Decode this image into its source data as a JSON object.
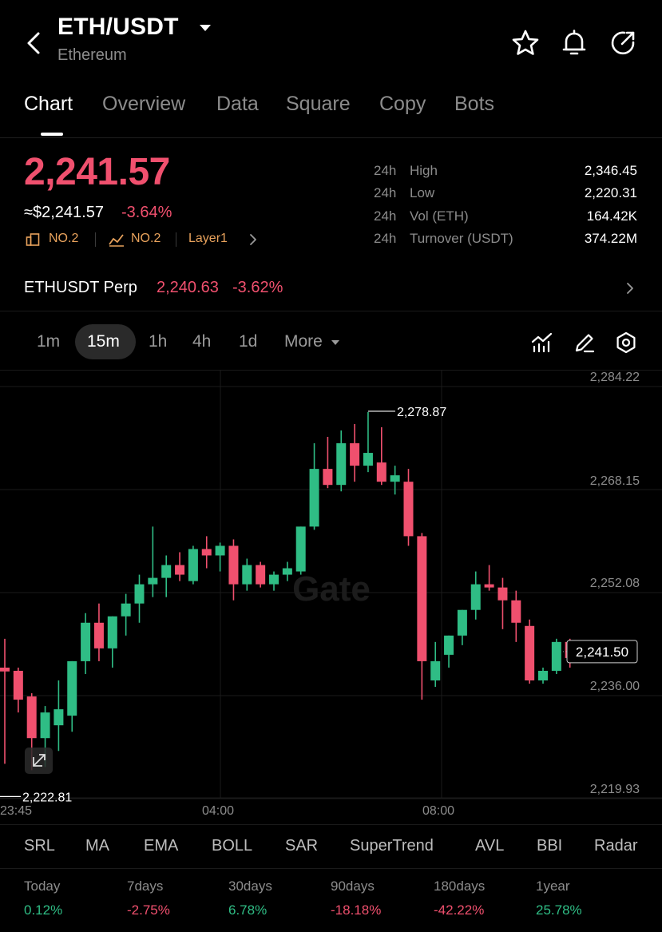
{
  "header": {
    "pair": "ETH/USDT",
    "name": "Ethereum",
    "icons": [
      "back-icon",
      "caret-down-icon",
      "star-icon",
      "bell-icon",
      "share-icon"
    ]
  },
  "tabs": [
    "Chart",
    "Overview",
    "Data",
    "Square",
    "Copy",
    "Bots"
  ],
  "active_tab": "Chart",
  "price": {
    "last": "2,241.57",
    "usd": "≈$2,241.57",
    "change": "-3.64%",
    "tags": [
      "NO.2",
      "NO.2",
      "Layer1"
    ]
  },
  "stats": [
    {
      "period": "24h",
      "label": "High",
      "value": "2,346.45"
    },
    {
      "period": "24h",
      "label": "Low",
      "value": "2,220.31"
    },
    {
      "period": "24h",
      "label": "Vol (ETH)",
      "value": "164.42K"
    },
    {
      "period": "24h",
      "label": "Turnover (USDT)",
      "value": "374.22M"
    }
  ],
  "perp": {
    "label": "ETHUSDT Perp",
    "price": "2,240.63",
    "change": "-3.62%"
  },
  "intervals": [
    "1m",
    "15m",
    "1h",
    "4h",
    "1d",
    "More"
  ],
  "active_interval": "15m",
  "colors": {
    "up": "#2fbd85",
    "down": "#f0506e",
    "accent_tag": "#e8a25c"
  },
  "chart_data": {
    "type": "candlestick",
    "watermark": "Gate",
    "y_ticks": [
      "2,284.22",
      "2,268.15",
      "2,252.08",
      "2,236.00",
      "2,219.93"
    ],
    "x_ticks": [
      "23:45",
      "04:00",
      "08:00"
    ],
    "high_marker": "2,278.87",
    "low_marker": "2,222.81",
    "current_price": "2,241.50",
    "ylim": [
      2219.93,
      2284.22
    ],
    "candles": [
      {
        "o": 2239.0,
        "h": 2243.5,
        "l": 2224.0,
        "c": 2238.4
      },
      {
        "o": 2238.5,
        "h": 2239.0,
        "l": 2232.0,
        "c": 2234.0
      },
      {
        "o": 2234.5,
        "h": 2235.0,
        "l": 2223.0,
        "c": 2228.0
      },
      {
        "o": 2228.0,
        "h": 2233.0,
        "l": 2223.5,
        "c": 2232.0
      },
      {
        "o": 2230.0,
        "h": 2237.0,
        "l": 2226.0,
        "c": 2232.5
      },
      {
        "o": 2231.5,
        "h": 2240.0,
        "l": 2229.0,
        "c": 2240.0
      },
      {
        "o": 2240.0,
        "h": 2247.5,
        "l": 2238.0,
        "c": 2246.0
      },
      {
        "o": 2246.0,
        "h": 2249.0,
        "l": 2240.0,
        "c": 2242.0
      },
      {
        "o": 2242.0,
        "h": 2247.0,
        "l": 2239.0,
        "c": 2247.0
      },
      {
        "o": 2247.0,
        "h": 2250.5,
        "l": 2244.0,
        "c": 2249.0
      },
      {
        "o": 2249.0,
        "h": 2253.5,
        "l": 2246.0,
        "c": 2252.0
      },
      {
        "o": 2252.0,
        "h": 2261.0,
        "l": 2250.0,
        "c": 2253.0
      },
      {
        "o": 2253.0,
        "h": 2256.5,
        "l": 2250.0,
        "c": 2255.0
      },
      {
        "o": 2255.0,
        "h": 2257.0,
        "l": 2252.5,
        "c": 2253.5
      },
      {
        "o": 2252.5,
        "h": 2258.0,
        "l": 2252.0,
        "c": 2257.5
      },
      {
        "o": 2257.5,
        "h": 2259.5,
        "l": 2254.5,
        "c": 2256.5
      },
      {
        "o": 2256.5,
        "h": 2258.5,
        "l": 2254.0,
        "c": 2258.0
      },
      {
        "o": 2258.0,
        "h": 2259.0,
        "l": 2249.5,
        "c": 2252.0
      },
      {
        "o": 2252.0,
        "h": 2256.0,
        "l": 2251.0,
        "c": 2255.0
      },
      {
        "o": 2255.0,
        "h": 2255.5,
        "l": 2251.5,
        "c": 2252.0
      },
      {
        "o": 2252.0,
        "h": 2254.0,
        "l": 2251.0,
        "c": 2253.5
      },
      {
        "o": 2253.5,
        "h": 2255.5,
        "l": 2252.5,
        "c": 2254.5
      },
      {
        "o": 2254.0,
        "h": 2261.0,
        "l": 2253.5,
        "c": 2261.0
      },
      {
        "o": 2261.0,
        "h": 2274.0,
        "l": 2260.5,
        "c": 2270.0
      },
      {
        "o": 2270.0,
        "h": 2275.0,
        "l": 2267.0,
        "c": 2267.5
      },
      {
        "o": 2267.5,
        "h": 2276.0,
        "l": 2266.5,
        "c": 2274.0
      },
      {
        "o": 2274.0,
        "h": 2277.0,
        "l": 2268.0,
        "c": 2270.5
      },
      {
        "o": 2270.5,
        "h": 2278.87,
        "l": 2269.5,
        "c": 2272.5
      },
      {
        "o": 2271.0,
        "h": 2276.5,
        "l": 2267.5,
        "c": 2268.0
      },
      {
        "o": 2268.0,
        "h": 2270.5,
        "l": 2266.0,
        "c": 2269.0
      },
      {
        "o": 2268.0,
        "h": 2270.0,
        "l": 2258.0,
        "c": 2259.5
      },
      {
        "o": 2259.5,
        "h": 2260.0,
        "l": 2234.0,
        "c": 2240.0
      },
      {
        "o": 2237.0,
        "h": 2243.0,
        "l": 2236.0,
        "c": 2240.0
      },
      {
        "o": 2241.0,
        "h": 2244.0,
        "l": 2239.0,
        "c": 2244.0
      },
      {
        "o": 2244.0,
        "h": 2248.0,
        "l": 2242.5,
        "c": 2248.0
      },
      {
        "o": 2248.0,
        "h": 2254.0,
        "l": 2246.5,
        "c": 2252.0
      },
      {
        "o": 2252.0,
        "h": 2255.0,
        "l": 2251.0,
        "c": 2251.5
      },
      {
        "o": 2251.5,
        "h": 2253.0,
        "l": 2245.0,
        "c": 2249.5
      },
      {
        "o": 2249.5,
        "h": 2251.0,
        "l": 2243.0,
        "c": 2246.0
      },
      {
        "o": 2245.5,
        "h": 2246.5,
        "l": 2236.5,
        "c": 2237.0
      },
      {
        "o": 2237.0,
        "h": 2239.0,
        "l": 2236.5,
        "c": 2238.5
      },
      {
        "o": 2238.5,
        "h": 2243.5,
        "l": 2238.0,
        "c": 2243.0
      },
      {
        "o": 2243.0,
        "h": 2243.5,
        "l": 2239.0,
        "c": 2240.5
      }
    ]
  },
  "indicators": [
    "SRL",
    "MA",
    "EMA",
    "BOLL",
    "SAR",
    "SuperTrend",
    "AVL",
    "BBI",
    "Radar"
  ],
  "performance": [
    {
      "label": "Today",
      "value": "0.12%",
      "dir": "up"
    },
    {
      "label": "7days",
      "value": "-2.75%",
      "dir": "down"
    },
    {
      "label": "30days",
      "value": "6.78%",
      "dir": "up"
    },
    {
      "label": "90days",
      "value": "-18.18%",
      "dir": "down"
    },
    {
      "label": "180days",
      "value": "-42.22%",
      "dir": "down"
    },
    {
      "label": "1year",
      "value": "25.78%",
      "dir": "up"
    }
  ]
}
